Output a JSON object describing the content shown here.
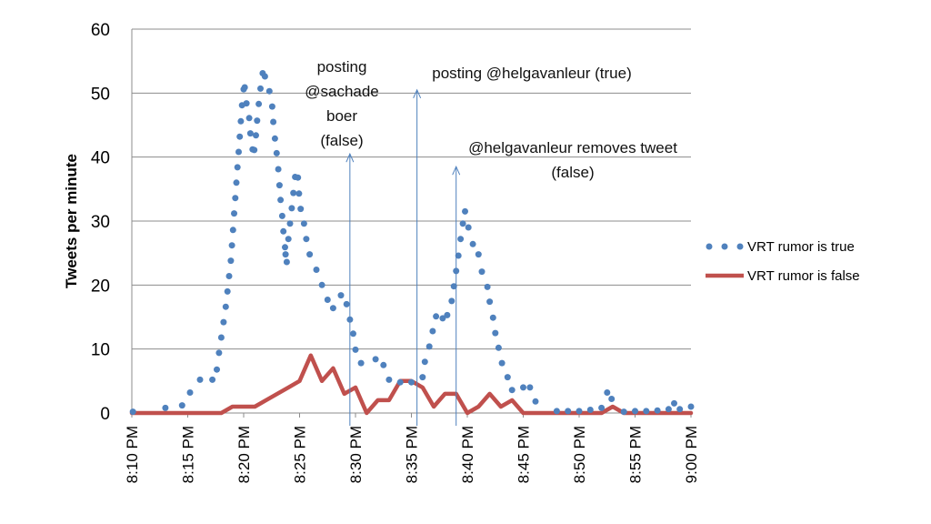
{
  "chart_data": {
    "type": "line",
    "title": "",
    "xlabel": "",
    "ylabel": "Tweets per minute",
    "ylim": [
      0,
      60
    ],
    "yticks": [
      "0",
      "10",
      "20",
      "30",
      "40",
      "50",
      "60"
    ],
    "xlim": [
      0,
      50
    ],
    "xticks": [
      "8:10 PM",
      "8:15 PM",
      "8:20 PM",
      "8:25 PM",
      "8:30 PM",
      "8:35 PM",
      "8:40 PM",
      "8:45 PM",
      "8:50 PM",
      "8:55 PM",
      "9:00 PM"
    ],
    "grid": "horizontal",
    "legend": "right",
    "series": [
      {
        "name": "VRT rumor is true",
        "style": "dotted",
        "color": "#4F81BD",
        "points": [
          [
            0.1,
            0.2
          ],
          [
            3,
            0.8
          ],
          [
            4.5,
            1.2
          ],
          [
            5.2,
            3.2
          ],
          [
            6.1,
            5.2
          ],
          [
            7.2,
            5.2
          ],
          [
            7.6,
            6.8
          ],
          [
            7.8,
            9.4
          ],
          [
            8.0,
            11.8
          ],
          [
            8.2,
            14.2
          ],
          [
            8.4,
            16.6
          ],
          [
            8.55,
            19
          ],
          [
            8.7,
            21.4
          ],
          [
            8.85,
            23.8
          ],
          [
            8.95,
            26.2
          ],
          [
            9.05,
            28.6
          ],
          [
            9.15,
            31.2
          ],
          [
            9.25,
            33.6
          ],
          [
            9.35,
            36
          ],
          [
            9.45,
            38.4
          ],
          [
            9.55,
            40.8
          ],
          [
            9.65,
            43.2
          ],
          [
            9.75,
            45.6
          ],
          [
            9.85,
            48.1
          ],
          [
            10,
            50.6
          ],
          [
            10.1,
            50.9
          ],
          [
            10.25,
            48.4
          ],
          [
            10.5,
            46.1
          ],
          [
            10.6,
            43.7
          ],
          [
            10.8,
            41.2
          ],
          [
            10.95,
            41.1
          ],
          [
            11.1,
            43.4
          ],
          [
            11.2,
            45.7
          ],
          [
            11.35,
            48.3
          ],
          [
            11.5,
            50.7
          ],
          [
            11.7,
            53.1
          ],
          [
            11.9,
            52.6
          ],
          [
            12.3,
            50.3
          ],
          [
            12.55,
            47.9
          ],
          [
            12.65,
            45.5
          ],
          [
            12.8,
            42.9
          ],
          [
            12.95,
            40.6
          ],
          [
            13.1,
            38.1
          ],
          [
            13.2,
            35.6
          ],
          [
            13.3,
            33.3
          ],
          [
            13.45,
            30.8
          ],
          [
            13.55,
            28.4
          ],
          [
            13.7,
            25.9
          ],
          [
            13.75,
            24.8
          ],
          [
            13.85,
            23.6
          ],
          [
            14.0,
            27.2
          ],
          [
            14.15,
            29.6
          ],
          [
            14.3,
            32
          ],
          [
            14.45,
            34.4
          ],
          [
            14.6,
            36.9
          ],
          [
            14.85,
            36.8
          ],
          [
            14.95,
            34.3
          ],
          [
            15.1,
            31.9
          ],
          [
            15.4,
            29.6
          ],
          [
            15.6,
            27.2
          ],
          [
            15.9,
            24.8
          ],
          [
            16.5,
            22.4
          ],
          [
            17,
            20
          ],
          [
            17.5,
            17.7
          ],
          [
            18,
            16.4
          ],
          [
            18.7,
            18.4
          ],
          [
            19.2,
            17
          ],
          [
            19.5,
            14.6
          ],
          [
            19.8,
            12.4
          ],
          [
            20.0,
            9.9
          ],
          [
            20.5,
            7.8
          ],
          [
            21.8,
            8.4
          ],
          [
            22.5,
            7.5
          ],
          [
            23,
            5.2
          ],
          [
            24,
            4.8
          ],
          [
            25,
            4.8
          ],
          [
            26,
            5.6
          ],
          [
            26.2,
            8
          ],
          [
            26.6,
            10.4
          ],
          [
            26.9,
            12.8
          ],
          [
            27.2,
            15.1
          ],
          [
            27.8,
            14.8
          ],
          [
            28.2,
            15.3
          ],
          [
            28.6,
            17.5
          ],
          [
            28.8,
            19.8
          ],
          [
            29.0,
            22.2
          ],
          [
            29.2,
            24.6
          ],
          [
            29.4,
            27.2
          ],
          [
            29.6,
            29.6
          ],
          [
            29.8,
            31.5
          ],
          [
            30.1,
            29
          ],
          [
            30.5,
            26.4
          ],
          [
            31,
            24.8
          ],
          [
            31.3,
            22.1
          ],
          [
            31.8,
            19.7
          ],
          [
            32,
            17.4
          ],
          [
            32.3,
            14.9
          ],
          [
            32.5,
            12.5
          ],
          [
            32.8,
            10.2
          ],
          [
            33.1,
            7.8
          ],
          [
            33.6,
            5.6
          ],
          [
            34,
            3.6
          ],
          [
            35,
            4
          ],
          [
            35.6,
            4
          ],
          [
            36.1,
            1.8
          ],
          [
            38,
            0.3
          ],
          [
            39,
            0.3
          ],
          [
            40,
            0.3
          ],
          [
            41,
            0.5
          ],
          [
            42,
            0.8
          ],
          [
            42.5,
            3.2
          ],
          [
            42.9,
            2.2
          ],
          [
            44,
            0.2
          ],
          [
            45,
            0.3
          ],
          [
            46,
            0.3
          ],
          [
            47,
            0.4
          ],
          [
            48,
            0.6
          ],
          [
            48.5,
            1.5
          ],
          [
            49,
            0.6
          ],
          [
            50,
            1
          ]
        ]
      },
      {
        "name": "VRT rumor is false",
        "style": "solid",
        "color": "#C0504D",
        "points": [
          [
            0,
            0
          ],
          [
            1,
            0
          ],
          [
            2,
            0
          ],
          [
            3,
            0
          ],
          [
            4,
            0
          ],
          [
            5,
            0
          ],
          [
            6,
            0
          ],
          [
            7,
            0
          ],
          [
            8,
            0
          ],
          [
            9,
            1
          ],
          [
            10,
            1
          ],
          [
            11,
            1
          ],
          [
            12,
            2
          ],
          [
            13,
            3
          ],
          [
            14,
            4
          ],
          [
            15,
            5
          ],
          [
            16,
            9
          ],
          [
            17,
            5
          ],
          [
            18,
            7
          ],
          [
            19,
            3
          ],
          [
            20,
            4
          ],
          [
            21,
            0
          ],
          [
            22,
            2
          ],
          [
            23,
            2
          ],
          [
            24,
            5
          ],
          [
            25,
            5
          ],
          [
            26,
            4
          ],
          [
            27,
            1
          ],
          [
            28,
            3
          ],
          [
            29,
            3
          ],
          [
            30,
            0
          ],
          [
            31,
            1
          ],
          [
            32,
            3
          ],
          [
            33,
            1
          ],
          [
            34,
            2
          ],
          [
            35,
            0
          ],
          [
            36,
            0
          ],
          [
            37,
            0
          ],
          [
            38,
            0
          ],
          [
            39,
            0
          ],
          [
            40,
            0
          ],
          [
            41,
            0
          ],
          [
            42,
            0
          ],
          [
            43,
            1
          ],
          [
            44,
            0
          ],
          [
            45,
            0
          ],
          [
            46,
            0
          ],
          [
            47,
            0
          ],
          [
            48,
            0
          ],
          [
            49,
            0
          ],
          [
            50,
            0
          ]
        ]
      }
    ],
    "annotations": [
      {
        "x": 19.5,
        "y_top": 40.5,
        "lines": [
          "posting",
          "@sachade",
          "boer",
          "(false)"
        ]
      },
      {
        "x": 25.5,
        "y_top": 50.5,
        "lines": [
          "posting @helgavanleur (true)"
        ]
      },
      {
        "x": 29,
        "y_top": 38.5,
        "lines": [
          "@helgavanleur removes tweet",
          "(false)"
        ]
      }
    ]
  }
}
